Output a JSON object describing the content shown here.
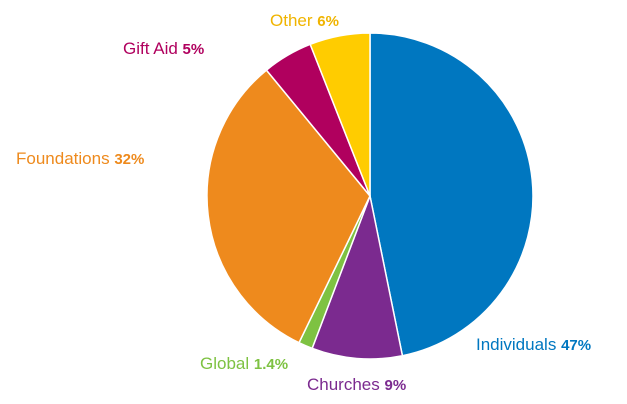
{
  "chart_data": {
    "type": "pie",
    "slices": [
      {
        "name": "Individuals",
        "pct_label": "47%",
        "value": 47,
        "color": "#0077c0"
      },
      {
        "name": "Churches",
        "pct_label": "9%",
        "value": 9,
        "color": "#7b2a8f"
      },
      {
        "name": "Global",
        "pct_label": "1.4%",
        "value": 1.4,
        "color": "#7ec242"
      },
      {
        "name": "Foundations",
        "pct_label": "32%",
        "value": 32,
        "color": "#ee8a1d"
      },
      {
        "name": "Gift Aid",
        "pct_label": "5%",
        "value": 5,
        "color": "#b0005e"
      },
      {
        "name": "Other",
        "pct_label": "6%",
        "value": 6,
        "color": "#ffcc00"
      }
    ]
  }
}
